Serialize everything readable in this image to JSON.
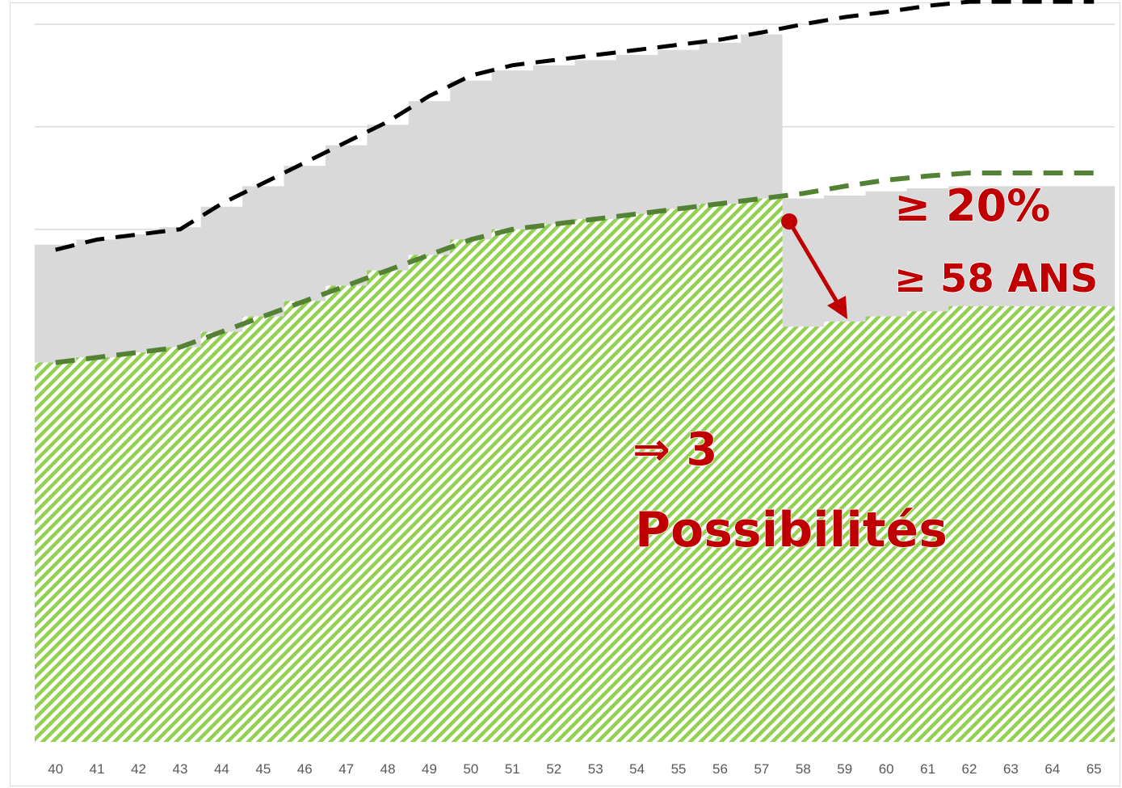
{
  "chart_data": {
    "type": "area",
    "x": [
      40,
      41,
      42,
      43,
      44,
      45,
      46,
      47,
      48,
      49,
      50,
      51,
      52,
      53,
      54,
      55,
      56,
      57,
      58,
      59,
      60,
      61,
      62,
      63,
      64,
      65
    ],
    "tick_labels": [
      "40",
      "41",
      "42",
      "43",
      "44",
      "45",
      "46",
      "47",
      "48",
      "49",
      "50",
      "51",
      "52",
      "53",
      "54",
      "55",
      "56",
      "57",
      "58",
      "59",
      "60",
      "61",
      "62",
      "63",
      "64",
      "65"
    ],
    "ylim": [
      0,
      7
    ],
    "grid": true,
    "series": [
      {
        "role": "upper-dashed-line",
        "color": "#000000",
        "values": [
          4.8,
          4.9,
          4.95,
          5.0,
          5.25,
          5.45,
          5.65,
          5.85,
          6.05,
          6.3,
          6.5,
          6.6,
          6.65,
          6.7,
          6.75,
          6.8,
          6.85,
          6.92,
          7.0,
          7.07,
          7.12,
          7.18,
          7.22,
          7.22,
          7.22,
          7.22
        ]
      },
      {
        "role": "lower-dashed-line",
        "color": "#548235",
        "values": [
          3.7,
          3.75,
          3.8,
          3.85,
          4.0,
          4.15,
          4.3,
          4.45,
          4.6,
          4.75,
          4.9,
          5.0,
          5.05,
          5.1,
          5.15,
          5.2,
          5.25,
          5.3,
          5.35,
          5.42,
          5.48,
          5.52,
          5.55,
          5.55,
          5.55,
          5.55
        ]
      },
      {
        "role": "grey-band-area",
        "color": "#d9d9d9",
        "values": [
          4.85,
          4.9,
          4.95,
          5.02,
          5.22,
          5.42,
          5.62,
          5.82,
          6.02,
          6.25,
          6.45,
          6.55,
          6.6,
          6.65,
          6.7,
          6.75,
          6.82,
          6.9,
          5.3,
          5.33,
          5.37,
          5.4,
          5.42,
          5.42,
          5.42,
          5.42
        ]
      },
      {
        "role": "green-hatched-area",
        "color": "#92d050",
        "values": [
          3.7,
          3.75,
          3.8,
          3.85,
          4.0,
          4.15,
          4.3,
          4.45,
          4.6,
          4.75,
          4.9,
          5.0,
          5.05,
          5.1,
          5.15,
          5.2,
          5.25,
          5.3,
          4.05,
          4.1,
          4.15,
          4.2,
          4.25,
          4.25,
          4.25,
          4.25
        ]
      }
    ],
    "step_after": 57,
    "gridlines": [
      5.0,
      6.0,
      7.0
    ],
    "annotations": {
      "threshold_pct": "≥ 20%",
      "threshold_age": "≥ 58 ANS",
      "conclusion_line1": "⇒ 3",
      "conclusion_line2": "Possibilités"
    },
    "annotation_color": "#c00000"
  }
}
